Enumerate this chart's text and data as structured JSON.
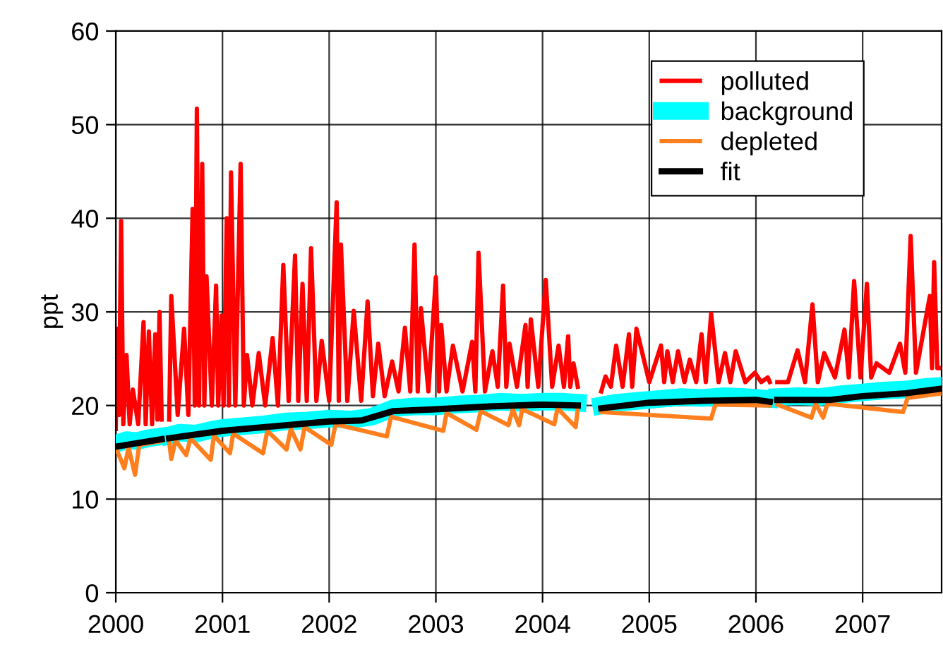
{
  "chart_data": {
    "type": "line",
    "ylabel": "ppt",
    "xlim": [
      2000,
      2007.74
    ],
    "xticks": [
      2000,
      2001,
      2002,
      2003,
      2004,
      2005,
      2006,
      2007
    ],
    "ylim": [
      0,
      60
    ],
    "yticks": [
      0,
      10,
      20,
      30,
      40,
      50,
      60
    ],
    "grid": true,
    "legend": "top right",
    "marker": "none",
    "line_style": "solid",
    "series": [
      {
        "name": "polluted",
        "color": "#ff0000",
        "x": [
          2000.0,
          2000.01,
          2000.03,
          2000.05,
          2000.07,
          2000.1,
          2000.13,
          2000.16,
          2000.21,
          2000.26,
          2000.28,
          2000.31,
          2000.34,
          2000.37,
          2000.39,
          2000.41,
          2000.43,
          2000.46,
          2000.5,
          2000.52,
          2000.58,
          2000.64,
          2000.68,
          2000.72,
          2000.74,
          2000.76,
          2000.78,
          2000.81,
          2000.83,
          2000.85,
          2000.9,
          2000.94,
          2000.96,
          2000.99,
          2001.01,
          2001.04,
          2001.06,
          2001.08,
          2001.12,
          2001.17,
          2001.2,
          2001.23,
          2001.28,
          2001.34,
          2001.4,
          2001.47,
          2001.52,
          2001.57,
          2001.62,
          2001.68,
          2001.71,
          2001.75,
          2001.79,
          2001.83,
          2001.88,
          2001.93,
          2002.0,
          2002.07,
          2002.09,
          2002.11,
          2002.17,
          2002.23,
          2002.3,
          2002.36,
          2002.41,
          2002.46,
          2002.52,
          2002.59,
          2002.65,
          2002.71,
          2002.76,
          2002.8,
          2002.83,
          2002.86,
          2002.93,
          2003.0,
          2003.03,
          2003.05,
          2003.1,
          2003.16,
          2003.25,
          2003.34,
          2003.37,
          2003.4,
          2003.46,
          2003.53,
          2003.58,
          2003.63,
          2003.66,
          2003.69,
          2003.76,
          2003.84,
          2003.86,
          2003.89,
          2003.96,
          2004.03,
          2004.09,
          2004.15,
          2004.2,
          2004.24,
          2004.26,
          2004.29,
          2004.33,
          2004.44,
          2004.55,
          2004.59,
          2004.64,
          2004.69,
          2004.75,
          2004.81,
          2004.84,
          2004.88,
          2005.0,
          2005.11,
          2005.14,
          2005.17,
          2005.22,
          2005.27,
          2005.33,
          2005.38,
          2005.44,
          2005.49,
          2005.53,
          2005.58,
          2005.65,
          2005.71,
          2005.76,
          2005.81,
          2005.9,
          2005.99,
          2006.05,
          2006.11,
          2006.13,
          2006.16,
          2006.2,
          2006.3,
          2006.39,
          2006.46,
          2006.53,
          2006.58,
          2006.64,
          2006.74,
          2006.83,
          2006.87,
          2006.92,
          2006.98,
          2007.04,
          2007.08,
          2007.13,
          2007.25,
          2007.35,
          2007.4,
          2007.45,
          2007.5,
          2007.63,
          2007.65,
          2007.67,
          2007.7,
          2007.74
        ],
        "values": [
          17.5,
          28.2,
          19,
          39.7,
          18,
          25.4,
          18,
          21.7,
          18,
          28.9,
          18,
          27.9,
          18,
          27.6,
          18.5,
          30.0,
          18.5,
          null,
          18.5,
          31.7,
          19,
          28.2,
          19,
          41.0,
          20,
          51.7,
          20,
          45.8,
          20,
          33.8,
          20,
          32.8,
          20,
          29.6,
          20,
          40.0,
          20,
          44.9,
          20,
          45.8,
          20,
          25.4,
          20,
          25.6,
          20,
          27.2,
          20,
          35.0,
          20.5,
          36.0,
          20.5,
          33.0,
          20.5,
          36.8,
          20.5,
          26.9,
          20.5,
          41.7,
          20.5,
          37.2,
          20.5,
          30.1,
          20.5,
          31.1,
          21,
          26.6,
          21,
          24.7,
          21.5,
          28.3,
          21.5,
          37.2,
          21.5,
          30.4,
          21.5,
          33.7,
          21.5,
          28.6,
          21.5,
          26.4,
          21.5,
          26.8,
          21.5,
          36.3,
          21.5,
          25.8,
          22,
          32.8,
          22,
          26.6,
          22,
          28.6,
          22,
          29.2,
          22,
          33.4,
          22,
          26.4,
          22,
          27.4,
          22,
          24.5,
          22,
          null,
          21.5,
          23.1,
          22,
          26.4,
          22,
          27.6,
          22,
          28.2,
          22.5,
          26.4,
          22.5,
          25.8,
          22.5,
          25.8,
          22.5,
          24.9,
          22.5,
          27.6,
          22.5,
          29.8,
          22.5,
          25.6,
          22.5,
          25.8,
          22.5,
          23.5,
          22.5,
          23.0,
          22.5,
          null,
          22.5,
          22.5,
          25.9,
          22.5,
          30.8,
          22.5,
          25.6,
          23,
          28.1,
          23,
          33.3,
          23,
          33.0,
          23,
          24.5,
          23.5,
          26.6,
          23.5,
          38.1,
          23.5,
          31.7,
          24,
          35.3,
          24,
          24
        ]
      },
      {
        "name": "background",
        "color": "#00ffff",
        "x": [
          2000.0,
          2000.1,
          2000.2,
          2000.3,
          2000.43,
          2000.46,
          2000.5,
          2000.6,
          2000.75,
          2000.9,
          2001.0,
          2001.2,
          2001.4,
          2001.6,
          2001.8,
          2002.0,
          2002.2,
          2002.4,
          2002.6,
          2002.8,
          2003.0,
          2003.2,
          2003.4,
          2003.6,
          2003.8,
          2004.0,
          2004.2,
          2004.33,
          2004.44,
          2004.55,
          2004.7,
          2004.9,
          2005.1,
          2005.3,
          2005.5,
          2005.7,
          2005.9,
          2006.13,
          2006.16,
          2006.2,
          2006.4,
          2006.6,
          2006.8,
          2007.0,
          2007.2,
          2007.4,
          2007.6,
          2007.74
        ],
        "values": [
          15.9,
          16.3,
          16.2,
          16.5,
          16.7,
          null,
          16.8,
          17.1,
          17.0,
          17.4,
          17.6,
          17.8,
          18.0,
          18.3,
          18.4,
          18.6,
          18.5,
          18.8,
          19.7,
          19.9,
          19.9,
          20.1,
          20.2,
          20.4,
          20.3,
          20.4,
          20.4,
          20.3,
          null,
          20.0,
          20.3,
          20.5,
          20.7,
          20.9,
          20.8,
          21.0,
          20.9,
          20.7,
          null,
          20.9,
          21.0,
          20.9,
          21.2,
          21.4,
          21.6,
          21.7,
          22.0,
          22.1
        ]
      },
      {
        "name": "depleted",
        "color": "#ff7f1e",
        "x": [
          2000.0,
          2000.08,
          2000.12,
          2000.18,
          2000.22,
          2000.43,
          2000.46,
          2000.5,
          2000.52,
          2000.56,
          2000.66,
          2000.7,
          2000.89,
          2000.92,
          2001.07,
          2001.1,
          2001.38,
          2001.42,
          2001.6,
          2001.64,
          2001.73,
          2001.77,
          2002.02,
          2002.06,
          2002.54,
          2002.58,
          2003.07,
          2003.1,
          2003.38,
          2003.42,
          2003.68,
          2003.72,
          2003.78,
          2003.81,
          2004.11,
          2004.14,
          2004.31,
          2004.33,
          2004.44,
          2004.55,
          2005.58,
          2005.62,
          2006.13,
          2006.16,
          2006.2,
          2006.52,
          2006.56,
          2006.63,
          2006.67,
          2007.38,
          2007.42,
          2007.74
        ],
        "values": [
          15.5,
          13.3,
          15.5,
          12.6,
          15.8,
          16.2,
          null,
          16.2,
          14.3,
          16.3,
          14.7,
          16.5,
          14.2,
          16.8,
          14.9,
          17.0,
          14.9,
          17.3,
          15.3,
          17.5,
          15.3,
          17.7,
          15.8,
          18.0,
          16.7,
          18.8,
          17.3,
          19.2,
          17.4,
          19.4,
          17.9,
          19.6,
          17.9,
          19.6,
          18.0,
          19.7,
          17.7,
          19.6,
          null,
          19.3,
          18.6,
          20.1,
          20.0,
          null,
          20.1,
          18.7,
          20.2,
          18.7,
          20.2,
          19.3,
          20.8,
          21.3
        ]
      },
      {
        "name": "fit",
        "color": "#000000",
        "x": [
          2000.0,
          2000.43,
          2000.46,
          2000.5,
          2001.0,
          2001.5,
          2002.0,
          2002.3,
          2002.6,
          2003.0,
          2003.5,
          2004.0,
          2004.33,
          2004.44,
          2004.55,
          2005.0,
          2005.5,
          2006.0,
          2006.13,
          2006.16,
          2006.2,
          2006.7,
          2007.0,
          2007.4,
          2007.74
        ],
        "values": [
          15.6,
          16.4,
          null,
          16.5,
          17.3,
          17.8,
          18.3,
          18.4,
          19.4,
          19.6,
          19.9,
          20.1,
          20.0,
          null,
          19.7,
          20.3,
          20.5,
          20.6,
          20.4,
          null,
          20.6,
          20.6,
          21.0,
          21.3,
          21.8
        ]
      }
    ]
  }
}
